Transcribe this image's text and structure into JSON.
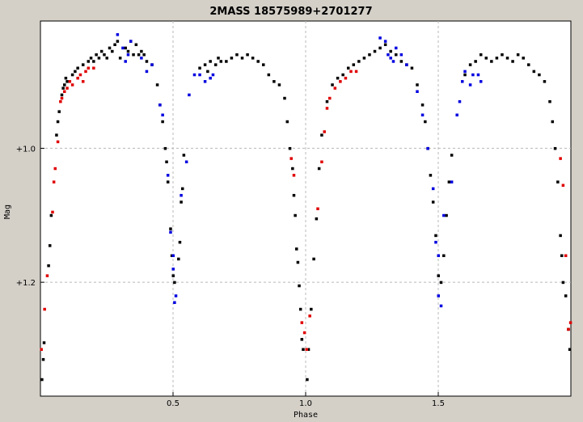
{
  "chart_data": {
    "type": "scatter",
    "title": "2MASS 18575989+2701277",
    "xlabel": "Phase",
    "ylabel": "Mag",
    "xlim": [
      0.0,
      2.0
    ],
    "ylim": [
      1.37,
      0.81
    ],
    "y_inverted": true,
    "grid": true,
    "x_ticks": [
      {
        "value": 0.5,
        "label": "0.5"
      },
      {
        "value": 1.0,
        "label": "1.0"
      },
      {
        "value": 1.5,
        "label": "1.5"
      }
    ],
    "y_ticks": [
      {
        "value": 1.0,
        "label": "+1.0"
      },
      {
        "value": 1.2,
        "label": "+1.2"
      }
    ],
    "colors": {
      "black": "#000000",
      "red": "#e00000",
      "blue": "#0000e0",
      "grid": "#b8b8b8",
      "background": "#ffffff"
    },
    "series": [
      {
        "color": "black",
        "points": [
          [
            0.005,
            1.345
          ],
          [
            0.01,
            1.315
          ],
          [
            0.013,
            1.29
          ],
          [
            0.03,
            1.175
          ],
          [
            0.035,
            1.145
          ],
          [
            0.04,
            1.1
          ],
          [
            0.06,
            0.98
          ],
          [
            0.065,
            0.96
          ],
          [
            0.07,
            0.945
          ],
          [
            0.08,
            0.92
          ],
          [
            0.085,
            0.91
          ],
          [
            0.09,
            0.905
          ],
          [
            0.095,
            0.895
          ],
          [
            0.1,
            0.9
          ],
          [
            0.12,
            0.89
          ],
          [
            0.13,
            0.885
          ],
          [
            0.14,
            0.88
          ],
          [
            0.16,
            0.875
          ],
          [
            0.18,
            0.87
          ],
          [
            0.19,
            0.865
          ],
          [
            0.2,
            0.87
          ],
          [
            0.21,
            0.86
          ],
          [
            0.22,
            0.865
          ],
          [
            0.23,
            0.855
          ],
          [
            0.24,
            0.86
          ],
          [
            0.25,
            0.865
          ],
          [
            0.26,
            0.85
          ],
          [
            0.27,
            0.855
          ],
          [
            0.28,
            0.845
          ],
          [
            0.29,
            0.84
          ],
          [
            0.3,
            0.865
          ],
          [
            0.32,
            0.85
          ],
          [
            0.33,
            0.855
          ],
          [
            0.34,
            0.84
          ],
          [
            0.35,
            0.86
          ],
          [
            0.36,
            0.845
          ],
          [
            0.37,
            0.86
          ],
          [
            0.38,
            0.855
          ],
          [
            0.39,
            0.86
          ],
          [
            0.4,
            0.87
          ],
          [
            0.42,
            0.875
          ],
          [
            0.44,
            0.905
          ],
          [
            0.45,
            0.935
          ],
          [
            0.46,
            0.96
          ],
          [
            0.47,
            1.0
          ],
          [
            0.475,
            1.02
          ],
          [
            0.48,
            1.05
          ],
          [
            0.49,
            1.12
          ],
          [
            0.495,
            1.16
          ],
          [
            0.5,
            1.19
          ],
          [
            0.505,
            1.2
          ],
          [
            0.52,
            1.165
          ],
          [
            0.525,
            1.14
          ],
          [
            0.53,
            1.08
          ],
          [
            0.535,
            1.06
          ],
          [
            0.54,
            1.01
          ],
          [
            0.6,
            0.88
          ],
          [
            0.62,
            0.875
          ],
          [
            0.63,
            0.885
          ],
          [
            0.64,
            0.87
          ],
          [
            0.66,
            0.875
          ],
          [
            0.67,
            0.865
          ],
          [
            0.68,
            0.87
          ],
          [
            0.7,
            0.87
          ],
          [
            0.72,
            0.865
          ],
          [
            0.74,
            0.86
          ],
          [
            0.76,
            0.865
          ],
          [
            0.78,
            0.86
          ],
          [
            0.8,
            0.865
          ],
          [
            0.82,
            0.87
          ],
          [
            0.84,
            0.875
          ],
          [
            0.86,
            0.89
          ],
          [
            0.88,
            0.9
          ],
          [
            0.9,
            0.905
          ],
          [
            0.92,
            0.925
          ],
          [
            0.93,
            0.96
          ],
          [
            0.94,
            1.0
          ],
          [
            0.95,
            1.03
          ],
          [
            0.955,
            1.07
          ],
          [
            0.96,
            1.1
          ],
          [
            0.965,
            1.15
          ],
          [
            0.97,
            1.17
          ],
          [
            0.975,
            1.205
          ],
          [
            0.98,
            1.24
          ],
          [
            0.985,
            1.285
          ],
          [
            0.99,
            1.3
          ],
          [
            1.005,
            1.345
          ],
          [
            1.01,
            1.3
          ],
          [
            1.02,
            1.24
          ],
          [
            1.03,
            1.165
          ],
          [
            1.04,
            1.105
          ],
          [
            1.05,
            1.03
          ],
          [
            1.06,
            0.98
          ],
          [
            1.08,
            0.93
          ],
          [
            1.1,
            0.905
          ],
          [
            1.12,
            0.895
          ],
          [
            1.14,
            0.89
          ],
          [
            1.16,
            0.88
          ],
          [
            1.18,
            0.875
          ],
          [
            1.2,
            0.87
          ],
          [
            1.22,
            0.865
          ],
          [
            1.24,
            0.86
          ],
          [
            1.26,
            0.855
          ],
          [
            1.28,
            0.85
          ],
          [
            1.3,
            0.845
          ],
          [
            1.32,
            0.855
          ],
          [
            1.34,
            0.86
          ],
          [
            1.36,
            0.87
          ],
          [
            1.38,
            0.875
          ],
          [
            1.4,
            0.88
          ],
          [
            1.42,
            0.905
          ],
          [
            1.44,
            0.935
          ],
          [
            1.45,
            0.96
          ],
          [
            1.46,
            1.0
          ],
          [
            1.47,
            1.04
          ],
          [
            1.48,
            1.08
          ],
          [
            1.49,
            1.13
          ],
          [
            1.5,
            1.19
          ],
          [
            1.51,
            1.2
          ],
          [
            1.52,
            1.16
          ],
          [
            1.53,
            1.1
          ],
          [
            1.54,
            1.05
          ],
          [
            1.55,
            1.01
          ],
          [
            1.6,
            0.89
          ],
          [
            1.62,
            0.875
          ],
          [
            1.64,
            0.87
          ],
          [
            1.66,
            0.86
          ],
          [
            1.68,
            0.865
          ],
          [
            1.7,
            0.87
          ],
          [
            1.72,
            0.865
          ],
          [
            1.74,
            0.86
          ],
          [
            1.76,
            0.865
          ],
          [
            1.78,
            0.87
          ],
          [
            1.8,
            0.86
          ],
          [
            1.82,
            0.865
          ],
          [
            1.84,
            0.875
          ],
          [
            1.86,
            0.885
          ],
          [
            1.88,
            0.89
          ],
          [
            1.9,
            0.9
          ],
          [
            1.92,
            0.93
          ],
          [
            1.93,
            0.96
          ],
          [
            1.94,
            1.0
          ],
          [
            1.95,
            1.05
          ],
          [
            1.96,
            1.13
          ],
          [
            1.965,
            1.16
          ],
          [
            1.97,
            1.2
          ],
          [
            1.98,
            1.22
          ],
          [
            1.99,
            1.27
          ],
          [
            1.995,
            1.3
          ]
        ]
      },
      {
        "color": "red",
        "points": [
          [
            0.003,
            1.3
          ],
          [
            0.015,
            1.24
          ],
          [
            0.025,
            1.19
          ],
          [
            0.045,
            1.095
          ],
          [
            0.05,
            1.05
          ],
          [
            0.055,
            1.03
          ],
          [
            0.065,
            0.99
          ],
          [
            0.075,
            0.93
          ],
          [
            0.08,
            0.925
          ],
          [
            0.09,
            0.915
          ],
          [
            0.1,
            0.91
          ],
          [
            0.11,
            0.9
          ],
          [
            0.12,
            0.905
          ],
          [
            0.14,
            0.895
          ],
          [
            0.15,
            0.89
          ],
          [
            0.16,
            0.9
          ],
          [
            0.17,
            0.885
          ],
          [
            0.18,
            0.88
          ],
          [
            0.2,
            0.88
          ],
          [
            0.945,
            1.015
          ],
          [
            0.955,
            1.04
          ],
          [
            0.985,
            1.26
          ],
          [
            0.995,
            1.275
          ],
          [
            1.003,
            1.3
          ],
          [
            1.015,
            1.25
          ],
          [
            1.045,
            1.09
          ],
          [
            1.06,
            1.02
          ],
          [
            1.07,
            0.975
          ],
          [
            1.08,
            0.94
          ],
          [
            1.09,
            0.925
          ],
          [
            1.11,
            0.91
          ],
          [
            1.13,
            0.9
          ],
          [
            1.15,
            0.895
          ],
          [
            1.17,
            0.885
          ],
          [
            1.19,
            0.885
          ],
          [
            1.96,
            1.015
          ],
          [
            1.97,
            1.055
          ],
          [
            1.98,
            1.16
          ],
          [
            1.99,
            1.27
          ],
          [
            1.998,
            1.26
          ]
        ]
      },
      {
        "color": "blue",
        "points": [
          [
            0.29,
            0.83
          ],
          [
            0.31,
            0.85
          ],
          [
            0.32,
            0.87
          ],
          [
            0.33,
            0.86
          ],
          [
            0.34,
            0.84
          ],
          [
            0.38,
            0.865
          ],
          [
            0.4,
            0.885
          ],
          [
            0.42,
            0.875
          ],
          [
            0.45,
            0.935
          ],
          [
            0.46,
            0.95
          ],
          [
            0.48,
            1.04
          ],
          [
            0.49,
            1.125
          ],
          [
            0.5,
            1.16
          ],
          [
            0.5,
            1.18
          ],
          [
            0.505,
            1.23
          ],
          [
            0.51,
            1.22
          ],
          [
            0.53,
            1.07
          ],
          [
            0.55,
            1.02
          ],
          [
            0.56,
            0.92
          ],
          [
            0.58,
            0.89
          ],
          [
            0.6,
            0.89
          ],
          [
            0.62,
            0.9
          ],
          [
            0.64,
            0.895
          ],
          [
            0.65,
            0.89
          ],
          [
            1.28,
            0.835
          ],
          [
            1.3,
            0.84
          ],
          [
            1.31,
            0.86
          ],
          [
            1.32,
            0.865
          ],
          [
            1.33,
            0.87
          ],
          [
            1.34,
            0.85
          ],
          [
            1.36,
            0.86
          ],
          [
            1.38,
            0.875
          ],
          [
            1.42,
            0.915
          ],
          [
            1.44,
            0.95
          ],
          [
            1.46,
            1.0
          ],
          [
            1.48,
            1.06
          ],
          [
            1.49,
            1.14
          ],
          [
            1.5,
            1.16
          ],
          [
            1.5,
            1.22
          ],
          [
            1.51,
            1.235
          ],
          [
            1.52,
            1.1
          ],
          [
            1.55,
            1.05
          ],
          [
            1.57,
            0.95
          ],
          [
            1.58,
            0.93
          ],
          [
            1.59,
            0.9
          ],
          [
            1.6,
            0.885
          ],
          [
            1.62,
            0.905
          ],
          [
            1.63,
            0.89
          ],
          [
            1.65,
            0.89
          ],
          [
            1.66,
            0.9
          ]
        ]
      }
    ]
  }
}
